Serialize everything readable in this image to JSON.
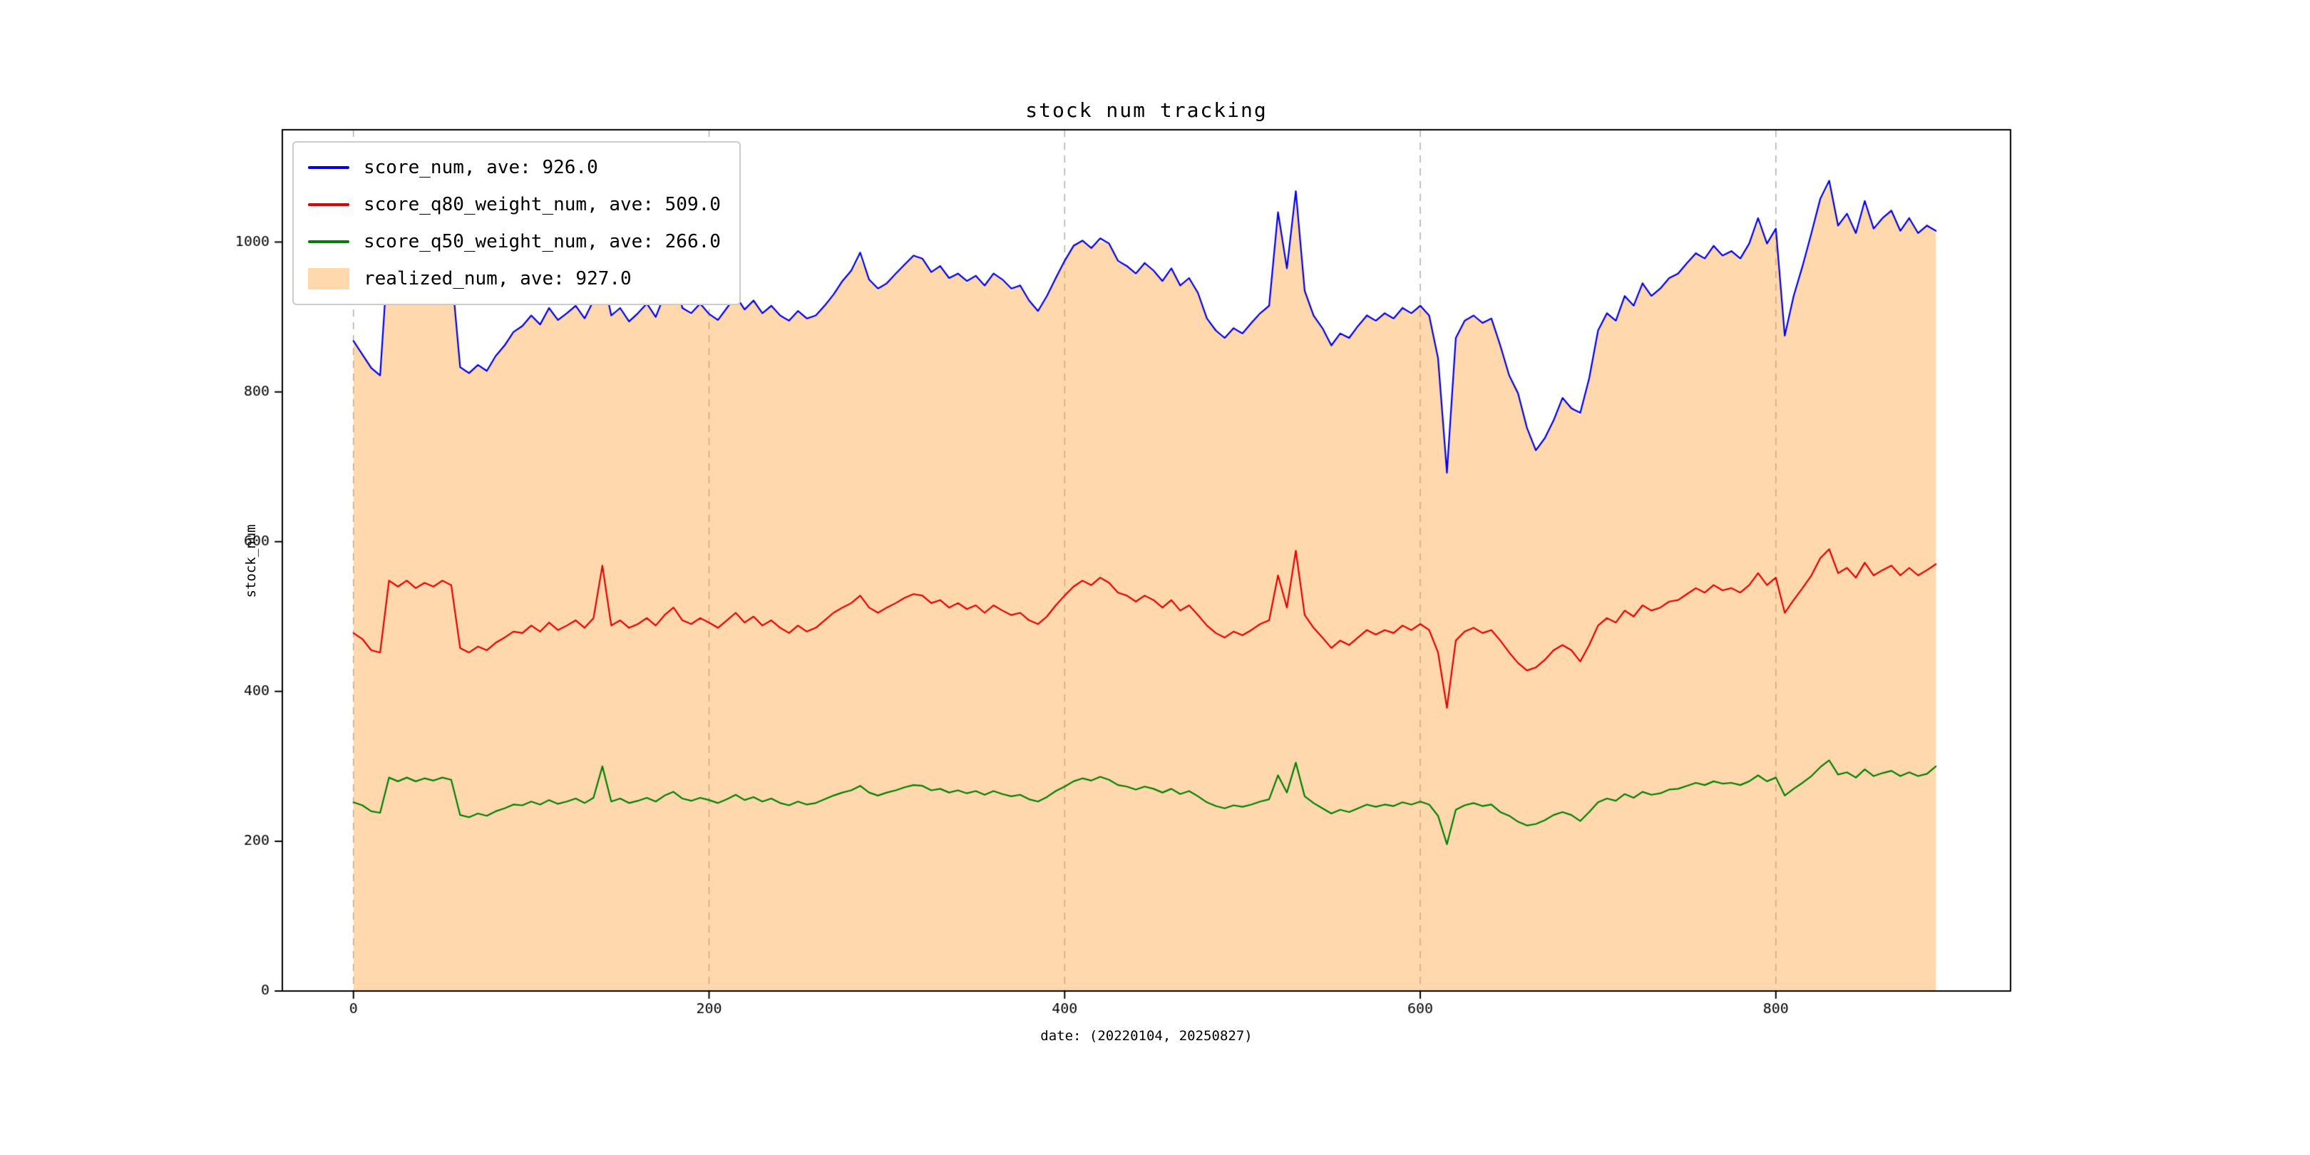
{
  "figure": {
    "title": "stock num tracking",
    "xlabel": "date: (20220104, 20250827)",
    "ylabel": "stock_num"
  },
  "chart_data": {
    "type": "line",
    "title": "stock num tracking",
    "xlabel": "date: (20220104, 20250827)",
    "ylabel": "stock_num",
    "xlim": [
      -40,
      932
    ],
    "ylim": [
      0,
      1150
    ],
    "xticks": [
      0,
      200,
      400,
      600,
      800
    ],
    "yticks": [
      0,
      200,
      400,
      600,
      800,
      1000
    ],
    "grid": {
      "vertical_dashed": true,
      "color": "#b4b4b4"
    },
    "legend_position": "upper left",
    "x": {
      "start": 0,
      "step": 5,
      "count": 179
    },
    "series": [
      {
        "name": "score_num",
        "label": "score_num, ave: 926.0",
        "type": "line",
        "color": "#0000ee",
        "avg": 926.0,
        "values": [
          868,
          850,
          832,
          822,
          1002,
          960,
          972,
          958,
          970,
          962,
          975,
          965,
          833,
          825,
          836,
          828,
          848,
          862,
          880,
          888,
          902,
          890,
          912,
          896,
          905,
          915,
          898,
          922,
          958,
          902,
          912,
          894,
          905,
          918,
          900,
          930,
          962,
          912,
          905,
          918,
          904,
          896,
          912,
          928,
          910,
          922,
          905,
          915,
          902,
          895,
          908,
          898,
          902,
          915,
          930,
          948,
          962,
          986,
          950,
          938,
          945,
          958,
          970,
          982,
          978,
          960,
          968,
          952,
          958,
          948,
          955,
          942,
          958,
          950,
          938,
          942,
          922,
          908,
          928,
          952,
          975,
          995,
          1002,
          992,
          1005,
          998,
          975,
          968,
          958,
          972,
          962,
          948,
          965,
          942,
          952,
          932,
          898,
          882,
          872,
          885,
          878,
          892,
          905,
          915,
          1040,
          965,
          1068,
          935,
          902,
          885,
          862,
          878,
          872,
          888,
          902,
          895,
          905,
          898,
          912,
          905,
          915,
          902,
          845,
          692,
          872,
          895,
          902,
          892,
          898,
          862,
          822,
          798,
          752,
          722,
          738,
          762,
          792,
          778,
          772,
          818,
          882,
          905,
          895,
          928,
          915,
          945,
          928,
          938,
          952,
          958,
          972,
          985,
          978,
          995,
          982,
          988,
          978,
          998,
          1032,
          998,
          1018,
          875,
          928,
          968,
          1012,
          1058,
          1082,
          1022,
          1038,
          1012,
          1055,
          1018,
          1032,
          1042,
          1015,
          1032,
          1012,
          1022,
          1015
        ]
      },
      {
        "name": "score_q80_weight_num",
        "label": "score_q80_weight_num, ave: 509.0",
        "type": "line",
        "color": "#e60000",
        "avg": 509.0,
        "values": [
          478,
          470,
          455,
          452,
          548,
          540,
          548,
          538,
          545,
          540,
          548,
          542,
          458,
          452,
          460,
          455,
          465,
          472,
          480,
          478,
          488,
          480,
          492,
          482,
          488,
          495,
          485,
          498,
          568,
          488,
          495,
          485,
          490,
          498,
          488,
          502,
          512,
          495,
          490,
          498,
          492,
          485,
          495,
          505,
          492,
          500,
          488,
          495,
          485,
          478,
          488,
          480,
          485,
          495,
          505,
          512,
          518,
          528,
          512,
          505,
          512,
          518,
          525,
          530,
          528,
          518,
          522,
          512,
          518,
          510,
          515,
          505,
          515,
          508,
          502,
          505,
          495,
          490,
          500,
          515,
          528,
          540,
          548,
          542,
          552,
          545,
          532,
          528,
          520,
          528,
          522,
          512,
          522,
          508,
          515,
          502,
          488,
          478,
          472,
          480,
          475,
          482,
          490,
          495,
          555,
          512,
          588,
          502,
          485,
          472,
          458,
          468,
          462,
          472,
          482,
          476,
          482,
          478,
          488,
          482,
          490,
          482,
          452,
          378,
          468,
          480,
          485,
          478,
          482,
          468,
          452,
          438,
          428,
          432,
          442,
          455,
          462,
          455,
          440,
          462,
          488,
          498,
          492,
          508,
          500,
          515,
          508,
          512,
          520,
          522,
          530,
          538,
          532,
          542,
          535,
          538,
          532,
          542,
          558,
          542,
          552,
          505,
          522,
          538,
          555,
          578,
          590,
          558,
          565,
          552,
          572,
          555,
          562,
          568,
          555,
          565,
          555,
          562,
          570
        ]
      },
      {
        "name": "score_q50_weight_num",
        "label": "score_q50_weight_num, ave: 266.0",
        "type": "line",
        "color": "#008000",
        "avg": 266.0,
        "values": [
          252,
          248,
          240,
          238,
          285,
          280,
          285,
          280,
          284,
          281,
          285,
          282,
          235,
          232,
          237,
          234,
          240,
          244,
          249,
          248,
          253,
          249,
          255,
          250,
          253,
          257,
          251,
          258,
          300,
          253,
          257,
          251,
          254,
          258,
          253,
          261,
          266,
          257,
          254,
          258,
          255,
          251,
          256,
          262,
          255,
          259,
          253,
          257,
          251,
          248,
          253,
          249,
          251,
          256,
          261,
          265,
          268,
          274,
          265,
          261,
          265,
          268,
          272,
          275,
          274,
          268,
          270,
          265,
          268,
          264,
          267,
          262,
          267,
          263,
          260,
          262,
          256,
          253,
          259,
          267,
          273,
          280,
          284,
          281,
          286,
          282,
          275,
          273,
          269,
          273,
          270,
          265,
          270,
          263,
          267,
          260,
          252,
          247,
          244,
          248,
          246,
          249,
          253,
          256,
          288,
          265,
          305,
          260,
          251,
          244,
          237,
          242,
          239,
          244,
          249,
          246,
          249,
          247,
          252,
          249,
          253,
          249,
          234,
          196,
          242,
          248,
          251,
          247,
          249,
          239,
          234,
          226,
          221,
          223,
          228,
          235,
          239,
          235,
          227,
          239,
          252,
          257,
          254,
          263,
          258,
          266,
          262,
          264,
          269,
          270,
          274,
          278,
          275,
          280,
          277,
          278,
          275,
          280,
          288,
          280,
          285,
          261,
          270,
          278,
          287,
          299,
          308,
          289,
          292,
          285,
          296,
          287,
          291,
          294,
          287,
          292,
          287,
          290,
          300
        ]
      },
      {
        "name": "realized_num",
        "label": "realized_num, ave: 927.0",
        "type": "area",
        "color": "#ffa53c",
        "alpha": 0.42,
        "avg": 927.0,
        "values": [
          868,
          852,
          835,
          820,
          1008,
          958,
          975,
          955,
          972,
          960,
          978,
          962,
          830,
          828,
          833,
          830,
          845,
          865,
          878,
          890,
          900,
          892,
          910,
          898,
          903,
          918,
          895,
          925,
          938,
          905,
          910,
          896,
          903,
          920,
          898,
          932,
          958,
          915,
          902,
          920,
          902,
          898,
          910,
          930,
          908,
          924,
          903,
          917,
          900,
          898,
          905,
          900,
          900,
          918,
          928,
          950,
          960,
          978,
          952,
          935,
          948,
          955,
          972,
          980,
          980,
          958,
          970,
          950,
          960,
          945,
          957,
          940,
          960,
          948,
          935,
          945,
          920,
          910,
          925,
          955,
          972,
          998,
          1000,
          995,
          1000,
          1000,
          972,
          970,
          955,
          975,
          960,
          950,
          962,
          945,
          950,
          935,
          895,
          885,
          870,
          888,
          875,
          895,
          902,
          918,
          1035,
          968,
          1052,
          938,
          905,
          882,
          865,
          875,
          875,
          885,
          905,
          892,
          908,
          895,
          915,
          902,
          918,
          900,
          848,
          700,
          868,
          898,
          900,
          895,
          895,
          865,
          818,
          802,
          748,
          725,
          735,
          765,
          788,
          782,
          768,
          822,
          878,
          908,
          892,
          930,
          912,
          948,
          925,
          940,
          950,
          960,
          970,
          988,
          975,
          998,
          980,
          990,
          975,
          1000,
          1025,
          1000,
          1015,
          878,
          925,
          970,
          1008,
          1055,
          1075,
          1025,
          1035,
          1015,
          1048,
          1020,
          1030,
          1045,
          1012,
          1035,
          1010,
          1025,
          1012
        ]
      }
    ]
  }
}
